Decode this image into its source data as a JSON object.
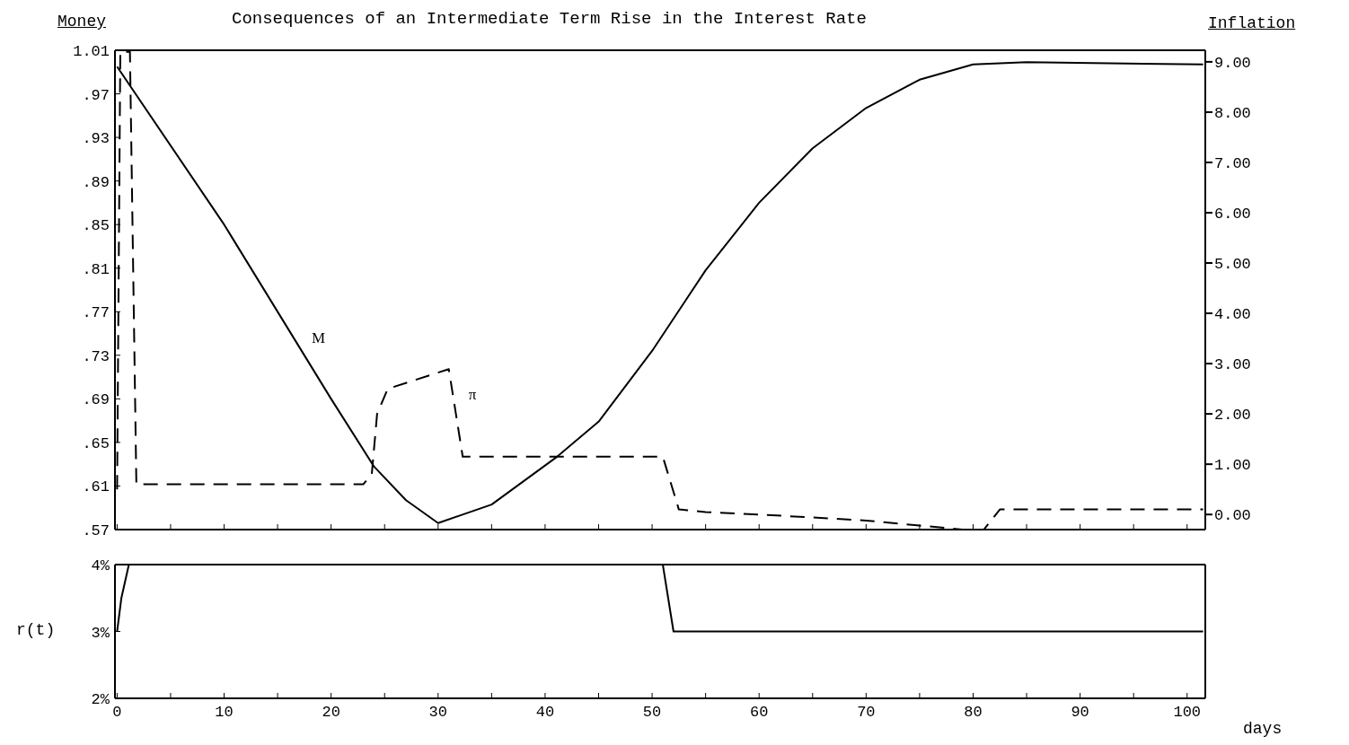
{
  "chart_data": [
    {
      "type": "line",
      "title": "Consequences of an Intermediate Term Rise in the Interest Rate",
      "ylabel": "Money",
      "y2label": "Inflation",
      "grid": false,
      "marker": "none",
      "tick_labels": "y",
      "xlim": [
        -0.2,
        101.7
      ],
      "xticks": [
        {
          "value": 0,
          "label": null
        },
        {
          "value": 5,
          "label": null
        },
        {
          "value": 10,
          "label": null
        },
        {
          "value": 15,
          "label": null
        },
        {
          "value": 20,
          "label": null
        },
        {
          "value": 25,
          "label": null
        },
        {
          "value": 30,
          "label": null
        },
        {
          "value": 35,
          "label": null
        },
        {
          "value": 40,
          "label": null
        },
        {
          "value": 45,
          "label": null
        },
        {
          "value": 50,
          "label": null
        },
        {
          "value": 55,
          "label": null
        },
        {
          "value": 60,
          "label": null
        },
        {
          "value": 65,
          "label": null
        },
        {
          "value": 70,
          "label": null
        },
        {
          "value": 75,
          "label": null
        },
        {
          "value": 80,
          "label": null
        },
        {
          "value": 85,
          "label": null
        },
        {
          "value": 90,
          "label": null
        },
        {
          "value": 95,
          "label": null
        },
        {
          "value": 100,
          "label": null
        }
      ],
      "ylim": [
        0.57,
        1.01
      ],
      "yticks": [
        {
          "value": 0.57,
          "label": ".57"
        },
        {
          "value": 0.61,
          "label": ".61"
        },
        {
          "value": 0.65,
          "label": ".65"
        },
        {
          "value": 0.69,
          "label": ".69"
        },
        {
          "value": 0.73,
          "label": ".73"
        },
        {
          "value": 0.77,
          "label": ".77"
        },
        {
          "value": 0.81,
          "label": ".81"
        },
        {
          "value": 0.85,
          "label": ".85"
        },
        {
          "value": 0.89,
          "label": ".89"
        },
        {
          "value": 0.93,
          "label": ".93"
        },
        {
          "value": 0.97,
          "label": ".97"
        },
        {
          "value": 1.01,
          "label": "1.01"
        }
      ],
      "y2lim": [
        -0.3,
        9.23
      ],
      "y2ticks": [
        {
          "value": 0,
          "label": "0.00"
        },
        {
          "value": 1,
          "label": "1.00"
        },
        {
          "value": 2,
          "label": "2.00"
        },
        {
          "value": 3,
          "label": "3.00"
        },
        {
          "value": 4,
          "label": "4.00"
        },
        {
          "value": 5,
          "label": "5.00"
        },
        {
          "value": 6,
          "label": "6.00"
        },
        {
          "value": 7,
          "label": "7.00"
        },
        {
          "value": 8,
          "label": "8.00"
        },
        {
          "value": 9,
          "label": "9.00"
        }
      ],
      "series": [
        {
          "name": "M",
          "color": "#000000",
          "line_style": "solid",
          "x": [
            0,
            10,
            17,
            20,
            24,
            27,
            30,
            35,
            41,
            45,
            50,
            55,
            60,
            65,
            70,
            75,
            80,
            85,
            101.5
          ],
          "values": [
            0.995,
            0.85,
            0.738,
            0.69,
            0.628,
            0.597,
            0.576,
            0.593,
            0.636,
            0.669,
            0.734,
            0.808,
            0.87,
            0.92,
            0.957,
            0.983,
            0.997,
            0.999,
            0.997
          ]
        },
        {
          "name": "π",
          "color": "#000000",
          "line_style": "dashed",
          "axis": "y2",
          "x": [
            0,
            0.3,
            1.2,
            1.8,
            23,
            23.8,
            24.3,
            25.3,
            31,
            32.3,
            51,
            52.5,
            55,
            60,
            70,
            79,
            81,
            82.5,
            101.5
          ],
          "values": [
            0.5,
            9.2,
            9.2,
            0.6,
            0.6,
            0.8,
            2.0,
            2.5,
            2.89,
            1.15,
            1.15,
            0.1,
            0.05,
            0,
            -0.12,
            -0.3,
            -0.3,
            0.1,
            0.1
          ]
        }
      ]
    },
    {
      "type": "line",
      "ylabel": "r(t)",
      "xlabel": "days",
      "grid": false,
      "marker": "none",
      "xlim": [
        -0.2,
        101.7
      ],
      "xticks": [
        0,
        {
          "value": 5,
          "label": null
        },
        10,
        {
          "value": 15,
          "label": null
        },
        20,
        {
          "value": 25,
          "label": null
        },
        30,
        {
          "value": 35,
          "label": null
        },
        40,
        {
          "value": 45,
          "label": null
        },
        50,
        {
          "value": 55,
          "label": null
        },
        60,
        {
          "value": 65,
          "label": null
        },
        70,
        {
          "value": 75,
          "label": null
        },
        80,
        {
          "value": 85,
          "label": null
        },
        90,
        {
          "value": 95,
          "label": null
        },
        100
      ],
      "ylim": [
        2,
        4
      ],
      "yticks": [
        {
          "value": 2,
          "label": "2%"
        },
        {
          "value": 3,
          "label": "3%"
        },
        {
          "value": 4,
          "label": "4%"
        }
      ],
      "series": [
        {
          "color": "#000000",
          "line_style": "solid",
          "x": [
            0,
            0.4,
            1.1,
            51,
            52,
            101.5
          ],
          "values": [
            3,
            3.5,
            4,
            4,
            3,
            3
          ]
        }
      ]
    }
  ]
}
